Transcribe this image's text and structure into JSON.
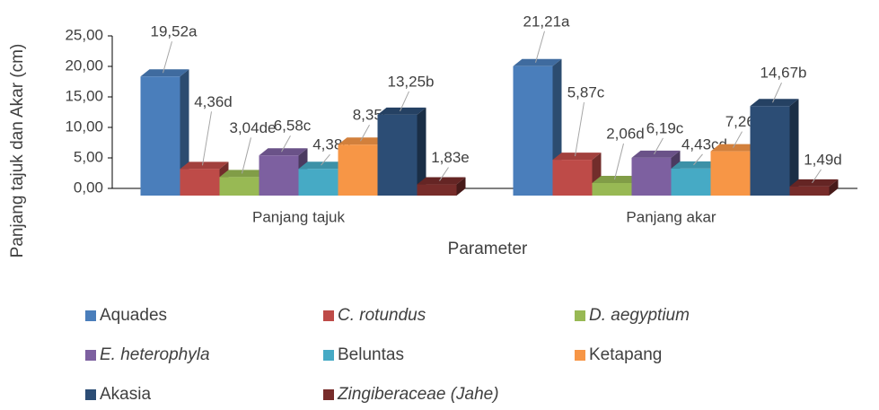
{
  "chart_data": {
    "type": "bar3d",
    "x_label": "Parameter",
    "y_label": "Panjang tajuk dan Akar (cm)",
    "categories": [
      "Panjang tajuk",
      "Panjang akar"
    ],
    "ylim": [
      0,
      25
    ],
    "yticks": [
      {
        "value": 0,
        "label": "0,00"
      },
      {
        "value": 5,
        "label": "5,00"
      },
      {
        "value": 10,
        "label": "10,00"
      },
      {
        "value": 15,
        "label": "15,00"
      },
      {
        "value": 20,
        "label": "20,00"
      },
      {
        "value": 25,
        "label": "25,00"
      }
    ],
    "grid": false,
    "series": [
      {
        "name": "Aquades",
        "color": "#4a7ebb",
        "values": [
          19.52,
          21.21
        ],
        "value_labels": [
          "19,52a",
          "21,21a"
        ]
      },
      {
        "name": "C. rotundus",
        "color": "#be4b48",
        "values": [
          4.36,
          5.87
        ],
        "value_labels": [
          "4,36d",
          "5,87c"
        ]
      },
      {
        "name": "D. aegyptium",
        "color": "#98b954",
        "values": [
          3.04,
          2.06
        ],
        "value_labels": [
          "3,04de",
          "2,06d"
        ]
      },
      {
        "name": "E. heterophyla",
        "color": "#7d60a0",
        "values": [
          6.58,
          6.19
        ],
        "value_labels": [
          "6,58c",
          "6,19c"
        ]
      },
      {
        "name": "Beluntas",
        "color": "#46aac5",
        "values": [
          4.38,
          4.43
        ],
        "value_labels": [
          "4,38d",
          "4,43cd"
        ]
      },
      {
        "name": "Ketapang",
        "color": "#f79646",
        "values": [
          8.35,
          7.26
        ],
        "value_labels": [
          "8,35c",
          "7,26c"
        ]
      },
      {
        "name": "Akasia",
        "color": "#2c4d75",
        "values": [
          13.25,
          14.67
        ],
        "value_labels": [
          "13,25b",
          "14,67b"
        ]
      },
      {
        "name": "Zingiberaceae (Jahe)",
        "color": "#772c2a",
        "values": [
          1.83,
          1.49
        ],
        "value_labels": [
          "1,83e",
          "1,49d"
        ]
      }
    ]
  }
}
